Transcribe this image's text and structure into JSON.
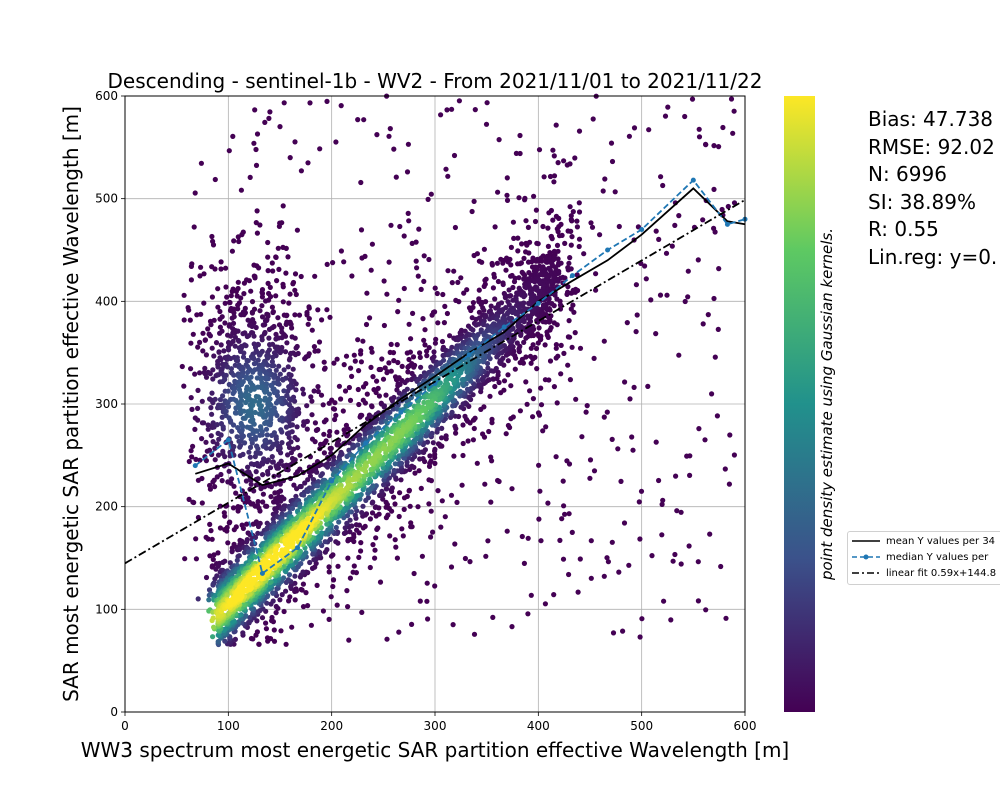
{
  "chart_data": {
    "type": "scatter",
    "title": "Descending - sentinel-1b - WV2 - From 2021/11/01 to 2021/11/22",
    "xlabel": "WW3 spectrum most energetic SAR partition effective Wavelength [m]",
    "ylabel": "SAR most energetic SAR partition effective Wavelength [m]",
    "xlim": [
      0,
      600
    ],
    "ylim": [
      0,
      600
    ],
    "xticks": [
      "0",
      "100",
      "200",
      "300",
      "400",
      "500",
      "600"
    ],
    "yticks": [
      "0",
      "100",
      "200",
      "300",
      "400",
      "500",
      "600"
    ],
    "grid": true,
    "colorbar_label": "point density estimate using Gaussian kernels.",
    "colormap": [
      "#440154",
      "#3b528b",
      "#21918c",
      "#5ec962",
      "#fde725"
    ],
    "stats": [
      "Bias: 47.738",
      "RMSE: 92.02",
      "N: 6996",
      "SI: 38.89%",
      "R: 0.55",
      "Lin.reg: y=0."
    ],
    "legend": [
      "mean Y values per 34",
      "median Y values per",
      "linear fit 0.59x+144.8"
    ],
    "series": [
      {
        "name": "mean Y values per 34",
        "color": "#000000",
        "style": "solid",
        "x": [
          68,
          100,
          133,
          167,
          200,
          233,
          267,
          300,
          333,
          367,
          400,
          433,
          467,
          500,
          550,
          583,
          600
        ],
        "y": [
          232,
          242,
          221,
          230,
          250,
          280,
          305,
          327,
          350,
          370,
          400,
          420,
          440,
          465,
          510,
          478,
          475
        ]
      },
      {
        "name": "median Y values per",
        "color": "#1f77b4",
        "style": "dashed",
        "x": [
          68,
          100,
          133,
          167,
          200,
          233,
          267,
          300,
          333,
          367,
          400,
          433,
          467,
          500,
          550,
          583,
          600
        ],
        "y": [
          240,
          265,
          135,
          160,
          225,
          262,
          292,
          320,
          348,
          375,
          398,
          425,
          450,
          470,
          518,
          475,
          480
        ]
      },
      {
        "name": "linear fit 0.59x+144.8",
        "color": "#000000",
        "style": "dashdot",
        "x": [
          0,
          600
        ],
        "y": [
          144.8,
          498.8
        ]
      }
    ]
  }
}
